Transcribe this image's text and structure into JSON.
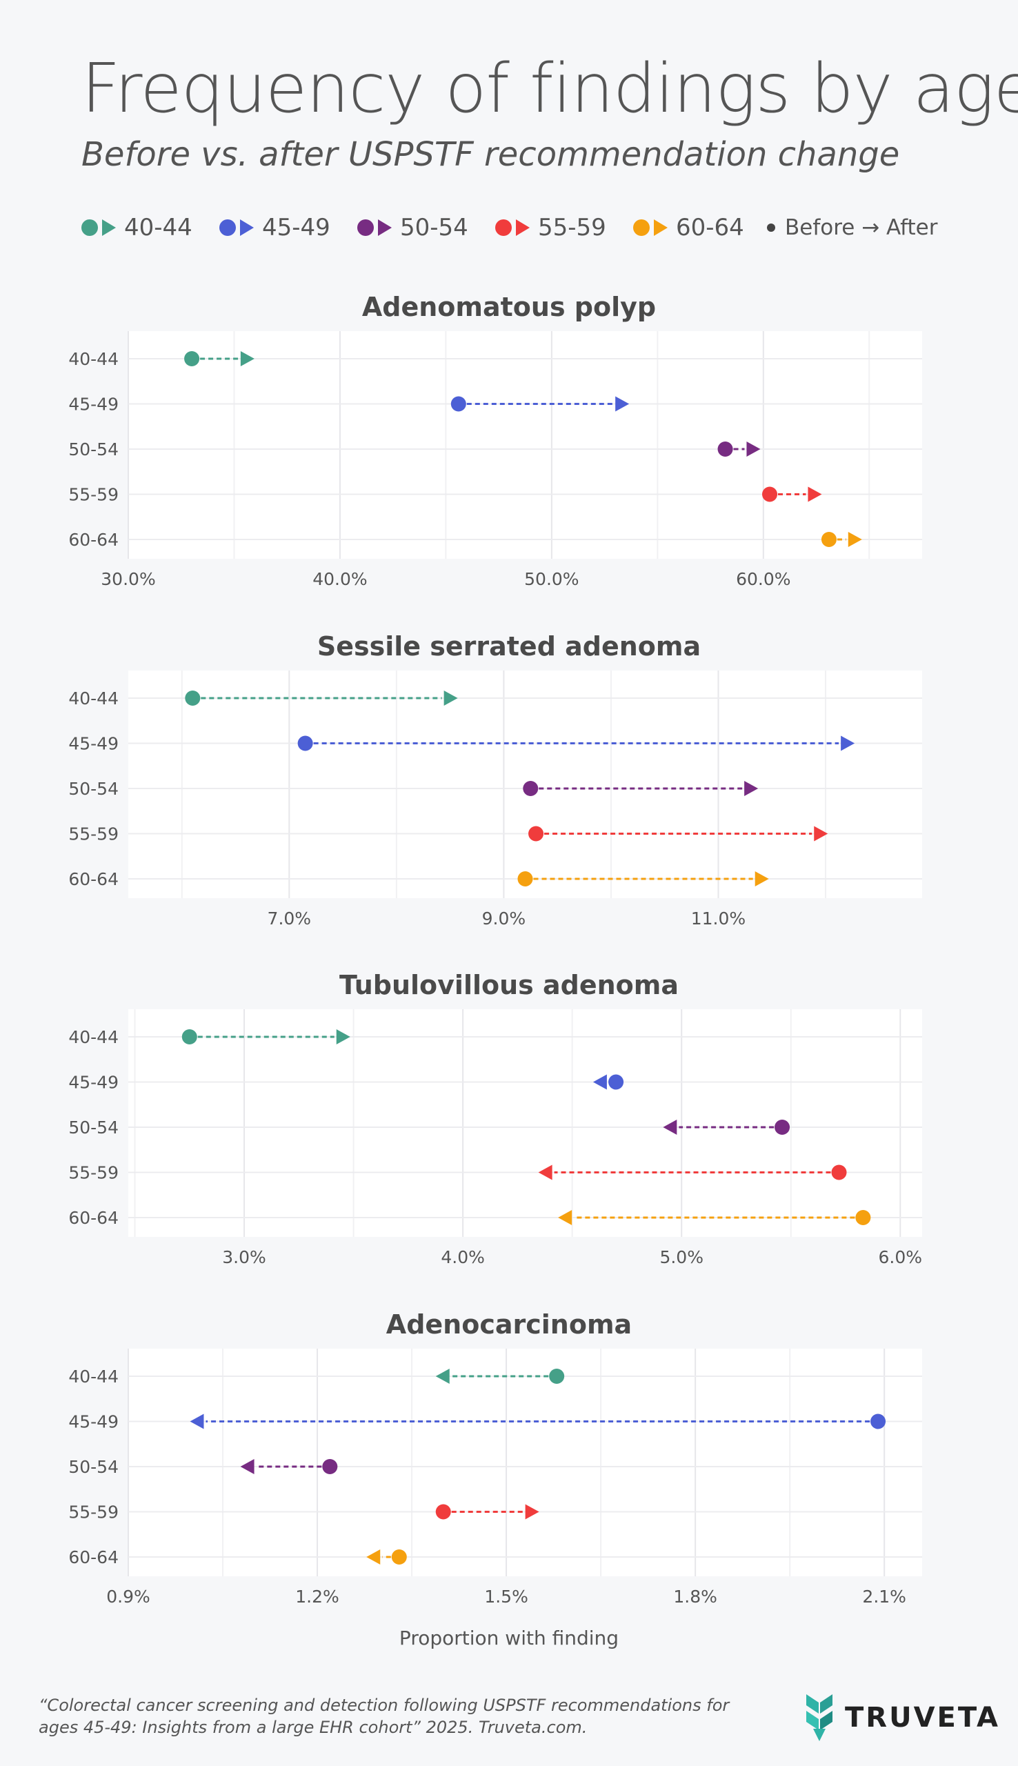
{
  "header": {
    "title": "Frequency of findings by age",
    "subtitle": "Before vs. after USPSTF recommendation change"
  },
  "legend": {
    "items": [
      {
        "label": "40-44",
        "color": "#45a088"
      },
      {
        "label": "45-49",
        "color": "#4c5fd5"
      },
      {
        "label": "50-54",
        "color": "#772c82"
      },
      {
        "label": "55-59",
        "color": "#f03c3c"
      },
      {
        "label": "60-64",
        "color": "#f5a00f"
      }
    ],
    "note": "Before → After"
  },
  "x_axis_title": "Proportion with finding",
  "source": "“Colorectal cancer screening and detection following USPSTF recommendations for ages 45-49: Insights from a large EHR cohort” 2025. Truveta.com.",
  "brand": {
    "name": "TRUVETA",
    "logo_icon": "truveta-logo-icon"
  },
  "chart_data": [
    {
      "type": "dumbbell",
      "title": "Adenomatous polyp",
      "categories": [
        "40-44",
        "45-49",
        "50-54",
        "55-59",
        "60-64"
      ],
      "xlim": [
        30.0,
        67.5
      ],
      "xticks": [
        30,
        40,
        50,
        60
      ],
      "xtick_labels": [
        "30.0%",
        "40.0%",
        "50.0%",
        "60.0%"
      ],
      "series": [
        {
          "name": "Before",
          "values": [
            33.0,
            45.6,
            58.2,
            60.3,
            63.1
          ]
        },
        {
          "name": "After",
          "values": [
            35.6,
            53.3,
            59.5,
            62.4,
            64.3
          ]
        }
      ]
    },
    {
      "type": "dumbbell",
      "title": "Sessile serrated adenoma",
      "categories": [
        "40-44",
        "45-49",
        "50-54",
        "55-59",
        "60-64"
      ],
      "xlim": [
        5.5,
        12.9
      ],
      "xticks": [
        7,
        9,
        11
      ],
      "xtick_labels": [
        "7.0%",
        "9.0%",
        "11.0%"
      ],
      "series": [
        {
          "name": "Before",
          "values": [
            6.1,
            7.15,
            9.25,
            9.3,
            9.2
          ]
        },
        {
          "name": "After",
          "values": [
            8.5,
            12.2,
            11.3,
            11.95,
            11.4
          ]
        }
      ]
    },
    {
      "type": "dumbbell",
      "title": "Tubulovillous adenoma",
      "categories": [
        "40-44",
        "45-49",
        "50-54",
        "55-59",
        "60-64"
      ],
      "xlim": [
        2.47,
        6.1
      ],
      "xticks": [
        3,
        4,
        5,
        6
      ],
      "xtick_labels": [
        "3.0%",
        "4.0%",
        "5.0%",
        "6.0%"
      ],
      "series": [
        {
          "name": "Before",
          "values": [
            2.75,
            4.7,
            5.46,
            5.72,
            5.83
          ]
        },
        {
          "name": "After",
          "values": [
            3.45,
            4.63,
            4.95,
            4.38,
            4.47
          ]
        }
      ]
    },
    {
      "type": "dumbbell",
      "title": "Adenocarcinoma",
      "categories": [
        "40-44",
        "45-49",
        "50-54",
        "55-59",
        "60-64"
      ],
      "xlim": [
        0.9,
        2.16
      ],
      "xticks": [
        0.9,
        1.2,
        1.5,
        1.8,
        2.1
      ],
      "xtick_labels": [
        "0.9%",
        "1.2%",
        "1.5%",
        "1.8%",
        "2.1%"
      ],
      "series": [
        {
          "name": "Before",
          "values": [
            1.58,
            2.09,
            1.22,
            1.4,
            1.33
          ]
        },
        {
          "name": "After",
          "values": [
            1.4,
            1.01,
            1.09,
            1.54,
            1.29
          ]
        }
      ]
    }
  ]
}
